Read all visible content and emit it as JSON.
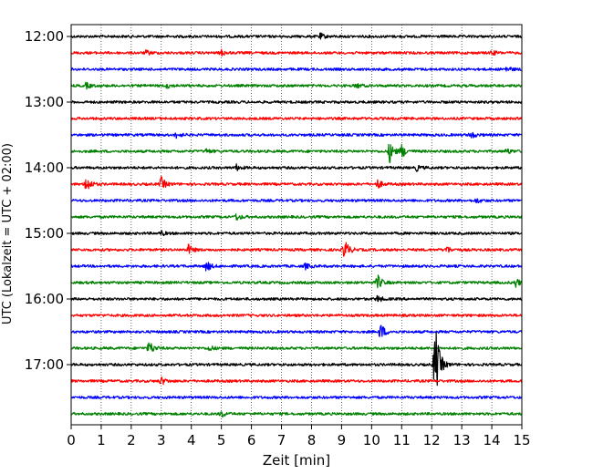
{
  "chart_data": {
    "type": "line",
    "title": "",
    "xlabel": "Zeit  [min]",
    "ylabel": "UTC (Lokalzeit = UTC + 02:00)",
    "xlim": [
      0,
      15
    ],
    "x_ticks": [
      "0",
      "1",
      "2",
      "3",
      "4",
      "5",
      "6",
      "7",
      "8",
      "9",
      "10",
      "11",
      "12",
      "13",
      "14",
      "15"
    ],
    "y_tick_labels": [
      "12:00",
      "13:00",
      "14:00",
      "15:00",
      "16:00",
      "17:00"
    ],
    "grid": "vertical dotted lines at each minute",
    "legend": "none",
    "trace_interval_min": 15,
    "start_time": "12:00",
    "trace_colors": [
      "#000000",
      "#ff0000",
      "#0000ff",
      "#008000"
    ],
    "traces": [
      {
        "start": "12:00",
        "color": "#000000",
        "events": [
          {
            "t": 8.3,
            "amp": 0.25
          }
        ]
      },
      {
        "start": "12:15",
        "color": "#ff0000",
        "events": [
          {
            "t": 2.5,
            "amp": 0.2
          },
          {
            "t": 5.0,
            "amp": 0.25
          },
          {
            "t": 14.0,
            "amp": 0.2
          }
        ]
      },
      {
        "start": "12:30",
        "color": "#0000ff",
        "events": [
          {
            "t": 14.5,
            "amp": 0.25
          }
        ]
      },
      {
        "start": "12:45",
        "color": "#008000",
        "events": [
          {
            "t": 0.5,
            "amp": 0.25
          },
          {
            "t": 3.2,
            "amp": 0.2
          },
          {
            "t": 9.5,
            "amp": 0.2
          }
        ]
      },
      {
        "start": "13:00",
        "color": "#000000",
        "events": []
      },
      {
        "start": "13:15",
        "color": "#ff0000",
        "events": []
      },
      {
        "start": "13:30",
        "color": "#0000ff",
        "events": [
          {
            "t": 3.5,
            "amp": 0.25
          },
          {
            "t": 13.3,
            "amp": 0.35
          }
        ]
      },
      {
        "start": "13:45",
        "color": "#008000",
        "events": [
          {
            "t": 4.5,
            "amp": 0.2
          },
          {
            "t": 10.6,
            "amp": 1.0
          },
          {
            "t": 11.0,
            "amp": 0.6
          },
          {
            "t": 14.5,
            "amp": 0.25
          }
        ]
      },
      {
        "start": "14:00",
        "color": "#000000",
        "events": [
          {
            "t": 5.5,
            "amp": 0.25
          },
          {
            "t": 11.5,
            "amp": 0.25
          }
        ]
      },
      {
        "start": "14:15",
        "color": "#ff0000",
        "events": [
          {
            "t": 0.5,
            "amp": 0.8
          },
          {
            "t": 3.0,
            "amp": 0.6
          },
          {
            "t": 10.2,
            "amp": 0.4
          }
        ]
      },
      {
        "start": "14:30",
        "color": "#0000ff",
        "events": [
          {
            "t": 13.5,
            "amp": 0.2
          }
        ]
      },
      {
        "start": "14:45",
        "color": "#008000",
        "events": [
          {
            "t": 5.5,
            "amp": 0.3
          }
        ]
      },
      {
        "start": "15:00",
        "color": "#000000",
        "events": [
          {
            "t": 3.0,
            "amp": 0.2
          }
        ]
      },
      {
        "start": "15:15",
        "color": "#ff0000",
        "events": [
          {
            "t": 3.9,
            "amp": 0.45
          },
          {
            "t": 9.1,
            "amp": 1.0
          },
          {
            "t": 12.5,
            "amp": 0.3
          }
        ]
      },
      {
        "start": "15:30",
        "color": "#0000ff",
        "events": [
          {
            "t": 4.5,
            "amp": 0.5
          },
          {
            "t": 7.8,
            "amp": 0.25
          }
        ]
      },
      {
        "start": "15:45",
        "color": "#008000",
        "events": [
          {
            "t": 10.2,
            "amp": 0.7
          },
          {
            "t": 14.8,
            "amp": 0.4
          }
        ]
      },
      {
        "start": "16:00",
        "color": "#000000",
        "events": [
          {
            "t": 10.2,
            "amp": 0.3
          }
        ]
      },
      {
        "start": "16:15",
        "color": "#ff0000",
        "events": []
      },
      {
        "start": "16:30",
        "color": "#0000ff",
        "events": [
          {
            "t": 10.3,
            "amp": 0.8
          }
        ]
      },
      {
        "start": "16:45",
        "color": "#008000",
        "events": [
          {
            "t": 2.6,
            "amp": 0.65
          },
          {
            "t": 4.6,
            "amp": 0.25
          }
        ]
      },
      {
        "start": "17:00",
        "color": "#000000",
        "events": [
          {
            "t": 12.1,
            "amp": 2.2
          },
          {
            "t": 12.15,
            "amp": 1.5
          }
        ]
      },
      {
        "start": "17:15",
        "color": "#ff0000",
        "events": [
          {
            "t": 3.0,
            "amp": 0.35
          }
        ]
      },
      {
        "start": "17:30",
        "color": "#0000ff",
        "events": []
      },
      {
        "start": "17:45",
        "color": "#008000",
        "events": [
          {
            "t": 5.0,
            "amp": 0.3
          }
        ]
      }
    ]
  }
}
